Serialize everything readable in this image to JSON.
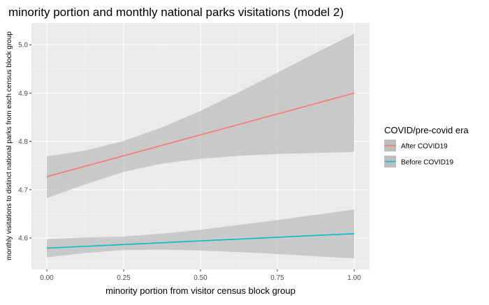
{
  "chart_data": {
    "type": "line",
    "title": "minority portion and monthly national parks visitations (model 2)",
    "xlabel": "minority portion from visitor census block group",
    "ylabel": "monthly visitations to distinct national parks from each census block group",
    "xlim": [
      -0.05,
      1.05
    ],
    "ylim": [
      4.535,
      5.045
    ],
    "x_ticks": [
      0.0,
      0.25,
      0.5,
      0.75,
      1.0
    ],
    "x_tick_labels": [
      "0.00",
      "0.25",
      "0.50",
      "0.75",
      "1.00"
    ],
    "y_ticks": [
      4.6,
      4.7,
      4.8,
      4.9,
      5.0
    ],
    "y_tick_labels": [
      "4.6",
      "4.7",
      "4.8",
      "4.9",
      "5.0"
    ],
    "grid": true,
    "legend": {
      "title": "COVID/pre-covid era",
      "placement": "right"
    },
    "series": [
      {
        "name": "After COVID19",
        "color": "#F8766D",
        "x": [
          0.0,
          1.0
        ],
        "y": [
          4.727,
          4.9
        ],
        "ci_x": [
          0.0,
          0.125,
          0.25,
          0.375,
          0.5,
          0.625,
          0.75,
          0.875,
          1.0
        ],
        "ci_lower": [
          4.683,
          4.711,
          4.737,
          4.754,
          4.764,
          4.77,
          4.774,
          4.776,
          4.778
        ],
        "ci_upper": [
          4.769,
          4.781,
          4.801,
          4.829,
          4.863,
          4.902,
          4.942,
          4.983,
          5.023
        ]
      },
      {
        "name": "Before COVID19",
        "color": "#00BFC4",
        "x": [
          0.0,
          1.0
        ],
        "y": [
          4.579,
          4.609
        ],
        "ci_x": [
          0.0,
          0.125,
          0.25,
          0.375,
          0.5,
          0.625,
          0.75,
          0.875,
          1.0
        ],
        "ci_lower": [
          4.56,
          4.569,
          4.575,
          4.576,
          4.574,
          4.571,
          4.567,
          4.562,
          4.558
        ],
        "ci_upper": [
          4.598,
          4.601,
          4.603,
          4.609,
          4.617,
          4.627,
          4.637,
          4.648,
          4.659
        ]
      }
    ],
    "ci_fill": "#BEBEBE",
    "panel_background": "#EBEBEB"
  }
}
